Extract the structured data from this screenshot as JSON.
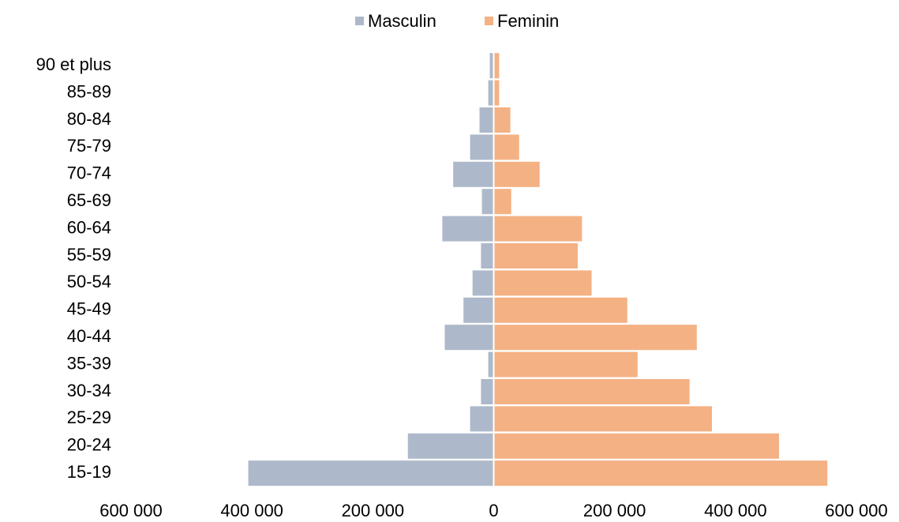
{
  "chart_data": {
    "type": "bar",
    "orientation": "horizontal",
    "stacked": true,
    "categories": [
      "90 et plus",
      "85-89",
      "80-84",
      "75-79",
      "70-74",
      "65-69",
      "60-64",
      "55-59",
      "50-54",
      "45-49",
      "40-44",
      "35-39",
      "30-34",
      "25-29",
      "20-24",
      "15-19"
    ],
    "series": [
      {
        "name": "Masculin",
        "color": "#adb9ca",
        "values": [
          -6500,
          -9000,
          -23500,
          -39000,
          -67000,
          -19500,
          -85000,
          -21000,
          -35000,
          -50000,
          -81000,
          -9000,
          -21000,
          -39000,
          -142000,
          -406000
        ]
      },
      {
        "name": "Feminin",
        "color": "#f4b183",
        "values": [
          9000,
          9000,
          27500,
          42000,
          76000,
          29000,
          146000,
          139000,
          162000,
          221000,
          336000,
          238000,
          324000,
          361000,
          472000,
          552000
        ]
      }
    ],
    "xlim": [
      -600000,
      600000
    ],
    "xticks": [
      {
        "value": -600000,
        "label": "600 000"
      },
      {
        "value": -400000,
        "label": "400 000"
      },
      {
        "value": -200000,
        "label": "200 000"
      },
      0,
      {
        "value": 200000,
        "label": "200 000"
      },
      {
        "value": 400000,
        "label": "400 000"
      },
      {
        "value": 600000,
        "label": "600 000"
      }
    ],
    "legend": "top"
  }
}
